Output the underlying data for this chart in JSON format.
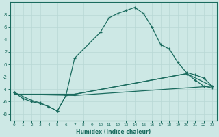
{
  "xlabel": "Humidex (Indice chaleur)",
  "bg_color": "#cde8e5",
  "line_color": "#1a6b5e",
  "grid_color": "#b8d8d5",
  "xlim": [
    -0.5,
    23.5
  ],
  "ylim": [
    -9,
    10
  ],
  "yticks": [
    -8,
    -6,
    -4,
    -2,
    0,
    2,
    4,
    6,
    8
  ],
  "xticks": [
    0,
    1,
    2,
    3,
    4,
    5,
    6,
    7,
    8,
    9,
    10,
    11,
    12,
    13,
    14,
    15,
    16,
    17,
    18,
    19,
    20,
    21,
    22,
    23
  ],
  "curve1_x": [
    0,
    1,
    2,
    3,
    4,
    5,
    6,
    7,
    10,
    11,
    12,
    13,
    14,
    15,
    16,
    17,
    18,
    19,
    20,
    21,
    22,
    23
  ],
  "curve1_y": [
    -4.5,
    -5.5,
    -6.0,
    -6.3,
    -6.8,
    -7.5,
    -5.0,
    1.0,
    5.2,
    7.5,
    8.2,
    8.7,
    9.2,
    8.2,
    6.0,
    3.2,
    2.5,
    0.3,
    -1.3,
    -1.7,
    -2.2,
    -3.5
  ],
  "curve2_x": [
    0,
    2,
    3,
    4,
    5,
    6,
    7,
    20,
    21,
    22,
    23
  ],
  "curve2_y": [
    -4.5,
    -5.8,
    -6.2,
    -6.8,
    -7.5,
    -5.0,
    -4.8,
    -1.5,
    -2.5,
    -3.5,
    -3.8
  ],
  "curve3_x": [
    0,
    7,
    23
  ],
  "curve3_y": [
    -4.8,
    -5.0,
    -3.5
  ],
  "curve4_x": [
    0,
    7,
    20,
    23
  ],
  "curve4_y": [
    -4.8,
    -4.8,
    -1.5,
    -3.5
  ]
}
